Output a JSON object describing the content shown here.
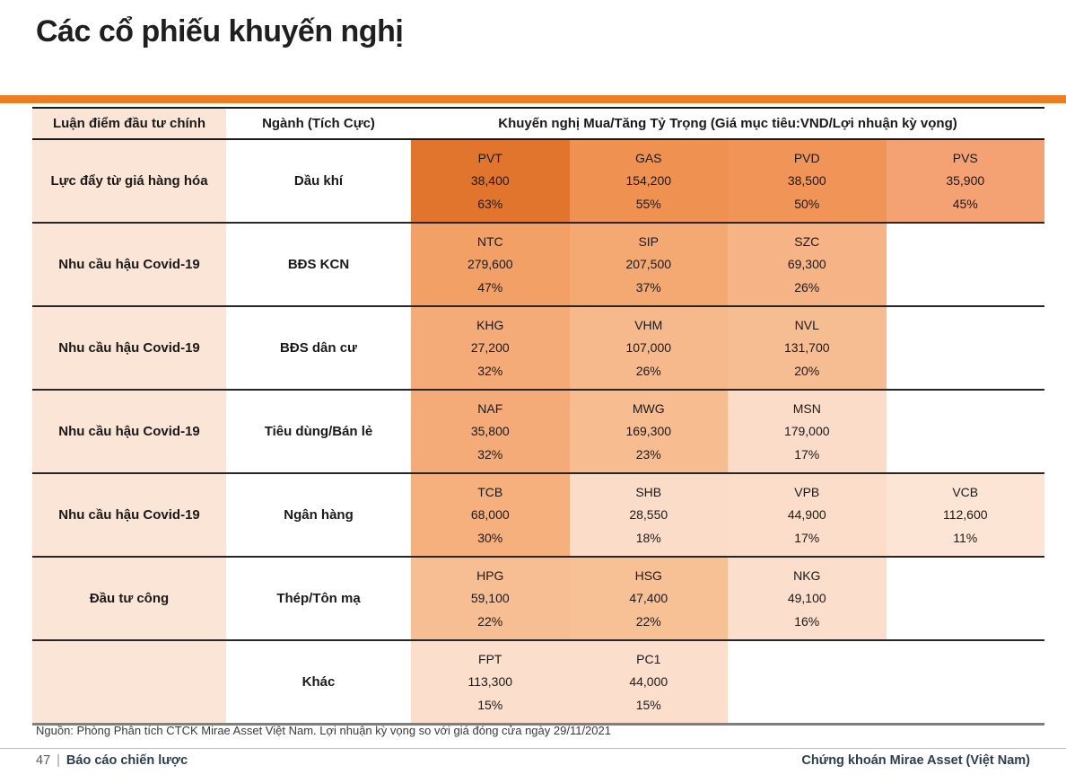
{
  "page": {
    "title": "Các cổ phiếu khuyến nghị",
    "accent_color": "#ED7D22",
    "source_note": "Nguồn: Phòng Phân tích CTCK Mirae Asset Việt Nam. Lợi nhuận kỳ vọng so với giá đóng cửa ngày 29/11/2021",
    "footer": {
      "page_number": "47",
      "report_title": "Báo cáo chiến lược",
      "company_name": "Chứng khoán Mirae Asset (Việt Nam)",
      "text_color": "#2d3e50"
    }
  },
  "table": {
    "headers": {
      "thesis": "Luận điểm đầu tư chính",
      "sector": "Ngành (Tích Cực)",
      "recommendation": "Khuyến nghị Mua/Tăng Tỷ Trọng (Giá mục tiêu:VND/Lợi nhuận kỳ vọng)"
    },
    "label_column_bg": "#FBE5D6",
    "rows": [
      {
        "thesis": "Lực đẩy từ giá hàng hóa",
        "sector": "Dầu khí",
        "stocks": [
          {
            "ticker": "PVT",
            "target_price": "38,400",
            "expected_return": "63%",
            "bg": "#E2752E"
          },
          {
            "ticker": "GAS",
            "target_price": "154,200",
            "expected_return": "55%",
            "bg": "#EF9150"
          },
          {
            "ticker": "PVD",
            "target_price": "38,500",
            "expected_return": "50%",
            "bg": "#F09557"
          },
          {
            "ticker": "PVS",
            "target_price": "35,900",
            "expected_return": "45%",
            "bg": "#F4A273"
          }
        ]
      },
      {
        "thesis": "Nhu cầu hậu Covid-19",
        "sector": "BĐS KCN",
        "stocks": [
          {
            "ticker": "NTC",
            "target_price": "279,600",
            "expected_return": "47%",
            "bg": "#F2A065"
          },
          {
            "ticker": "SIP",
            "target_price": "207,500",
            "expected_return": "37%",
            "bg": "#F4A872"
          },
          {
            "ticker": "SZC",
            "target_price": "69,300",
            "expected_return": "26%",
            "bg": "#F6B486"
          }
        ]
      },
      {
        "thesis": "Nhu cầu hậu Covid-19",
        "sector": "BĐS dân cư",
        "stocks": [
          {
            "ticker": "KHG",
            "target_price": "27,200",
            "expected_return": "32%",
            "bg": "#F4AB77"
          },
          {
            "ticker": "VHM",
            "target_price": "107,000",
            "expected_return": "26%",
            "bg": "#F6B98C"
          },
          {
            "ticker": "NVL",
            "target_price": "131,700",
            "expected_return": "20%",
            "bg": "#F7BD92"
          }
        ]
      },
      {
        "thesis": "Nhu cầu hậu Covid-19",
        "sector": "Tiêu dùng/Bán lẻ",
        "stocks": [
          {
            "ticker": "NAF",
            "target_price": "35,800",
            "expected_return": "32%",
            "bg": "#F4AB77"
          },
          {
            "ticker": "MWG",
            "target_price": "169,300",
            "expected_return": "23%",
            "bg": "#F7BC90"
          },
          {
            "ticker": "MSN",
            "target_price": "179,000",
            "expected_return": "17%",
            "bg": "#FBDCC8"
          }
        ]
      },
      {
        "thesis": "Nhu cầu hậu Covid-19",
        "sector": "Ngân hàng",
        "stocks": [
          {
            "ticker": "TCB",
            "target_price": "68,000",
            "expected_return": "30%",
            "bg": "#F5B07D"
          },
          {
            "ticker": "SHB",
            "target_price": "28,550",
            "expected_return": "18%",
            "bg": "#FBDCC8"
          },
          {
            "ticker": "VPB",
            "target_price": "44,900",
            "expected_return": "17%",
            "bg": "#FBDDCA"
          },
          {
            "ticker": "VCB",
            "target_price": "112,600",
            "expected_return": "11%",
            "bg": "#FDE5D5"
          }
        ]
      },
      {
        "thesis": "Đầu tư công",
        "sector": "Thép/Tôn mạ",
        "stocks": [
          {
            "ticker": "HPG",
            "target_price": "59,100",
            "expected_return": "22%",
            "bg": "#F7BE93"
          },
          {
            "ticker": "HSG",
            "target_price": "47,400",
            "expected_return": "22%",
            "bg": "#F8C095"
          },
          {
            "ticker": "NKG",
            "target_price": "49,100",
            "expected_return": "16%",
            "bg": "#FBDECB"
          }
        ]
      },
      {
        "thesis": "",
        "sector": "Khác",
        "stocks": [
          {
            "ticker": "FPT",
            "target_price": "113,300",
            "expected_return": "15%",
            "bg": "#FBDFCC"
          },
          {
            "ticker": "PC1",
            "target_price": "44,000",
            "expected_return": "15%",
            "bg": "#FBDFCC"
          }
        ]
      }
    ]
  }
}
